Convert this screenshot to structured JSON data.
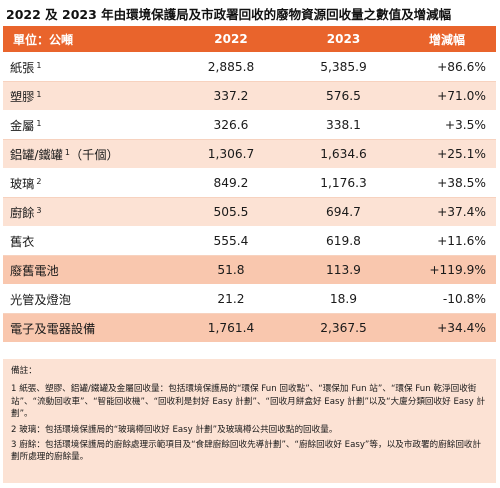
{
  "title": "2022 及 2023 年由環境保護局及市政署回收的廢物資源回收量之數值及增減幅",
  "header": {
    "category": "單位：公噸",
    "y2022": "2022",
    "y2023": "2023",
    "change": "增減幅"
  },
  "rows": [
    {
      "name": "紙張",
      "note": "1",
      "v2022": "2,885.8",
      "v2023": "5,385.9",
      "change": "+86.6%"
    },
    {
      "name": "塑膠",
      "note": "1",
      "v2022": "337.2",
      "v2023": "576.5",
      "change": "+71.0%"
    },
    {
      "name": "金屬",
      "note": "1",
      "v2022": "326.6",
      "v2023": "338.1",
      "change": "+3.5%"
    },
    {
      "name": "鋁罐/鐵罐",
      "note": "1",
      "suffix": "（千個）",
      "v2022": "1,306.7",
      "v2023": "1,634.6",
      "change": "+25.1%"
    },
    {
      "name": "玻璃",
      "note": "2",
      "v2022": "849.2",
      "v2023": "1,176.3",
      "change": "+38.5%"
    },
    {
      "name": "廚餘",
      "note": "3",
      "v2022": "505.5",
      "v2023": "694.7",
      "change": "+37.4%"
    },
    {
      "name": "舊衣",
      "note": "",
      "v2022": "555.4",
      "v2023": "619.8",
      "change": "+11.6%"
    },
    {
      "name": "廢舊電池",
      "note": "",
      "v2022": "51.8",
      "v2023": "113.9",
      "change": "+119.9%"
    },
    {
      "name": "光管及燈泡",
      "note": "",
      "v2022": "21.2",
      "v2023": "18.9",
      "change": "-10.8%"
    },
    {
      "name": "電子及電器設備",
      "note": "",
      "v2022": "1,761.4",
      "v2023": "2,367.5",
      "change": "+34.4%"
    }
  ],
  "notes": {
    "heading": "備註：",
    "items": [
      "1 紙張、塑膠、鋁罐/鐵罐及金屬回收量：包括環境保護局的“環保 Fun 回收點”、“環保加 Fun 站”、“環保 Fun 乾淨回收街站”、“流動回收車”、“智能回收機”、“回收利是封好 Easy 計劃”、“回收月餅盒好 Easy 計劃”以及“大廈分類回收好 Easy 計劃”。",
      "2 玻璃：包括環境保護局的“玻璃樽回收好 Easy 計劃”及玻璃樽公共回收點的回收量。",
      "3 廚餘：包括環境保護局的廚餘處理示範項目及“食肆廚餘回收先導計劃”、“廚餘回收好 Easy”等，以及市政署的廚餘回收計劃所處理的廚餘量。"
    ]
  }
}
